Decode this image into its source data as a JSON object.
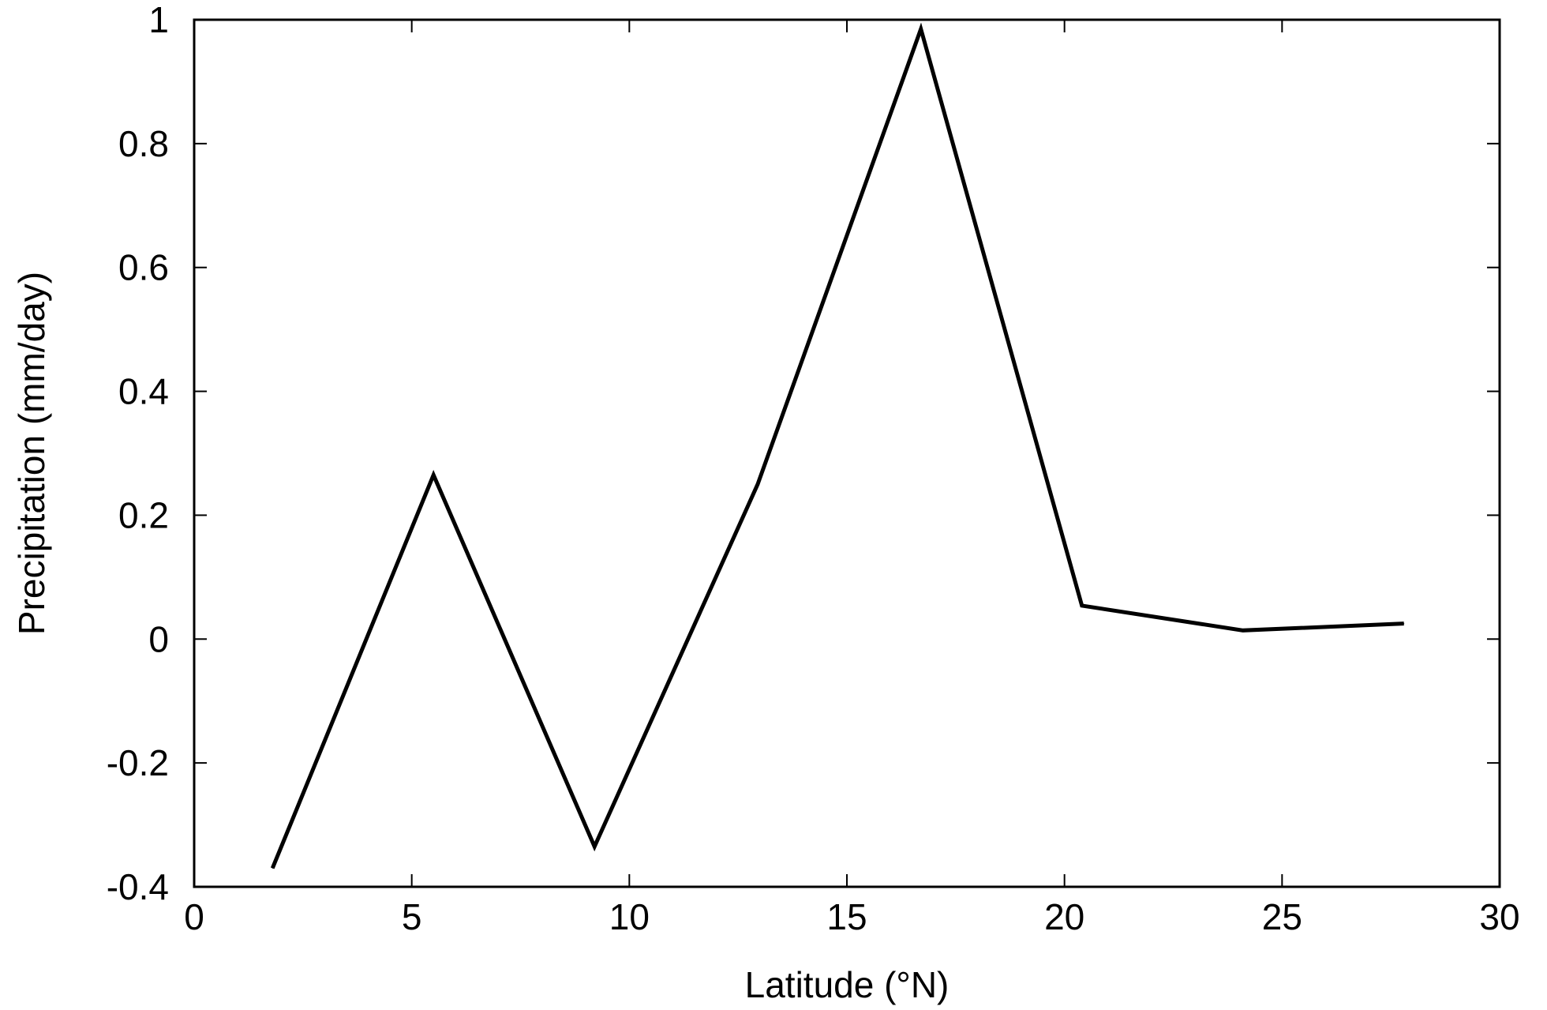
{
  "chart_data": {
    "type": "line",
    "title": "",
    "xlabel": "Latitude (°N)",
    "ylabel": "Precipitation (mm/day)",
    "xlim": [
      0,
      30
    ],
    "ylim": [
      -0.4,
      1
    ],
    "xticks": [
      0,
      5,
      10,
      15,
      20,
      25,
      30
    ],
    "xtick_labels": [
      "0",
      "5",
      "10",
      "15",
      "20",
      "25",
      "30"
    ],
    "yticks": [
      -0.4,
      -0.2,
      0,
      0.2,
      0.4,
      0.6,
      0.8,
      1
    ],
    "ytick_labels": [
      "-0.4",
      "-0.2",
      "0",
      "0.2",
      "0.4",
      "0.6",
      "0.8",
      "1"
    ],
    "grid": false,
    "legend": "none",
    "series": [
      {
        "color": "#000000",
        "x": [
          1.8,
          5.5,
          9.2,
          12.95,
          16.7,
          20.4,
          24.1,
          27.8
        ],
        "y": [
          -0.37,
          0.265,
          -0.335,
          0.25,
          0.985,
          0.054,
          0.014,
          0.025
        ]
      }
    ]
  }
}
